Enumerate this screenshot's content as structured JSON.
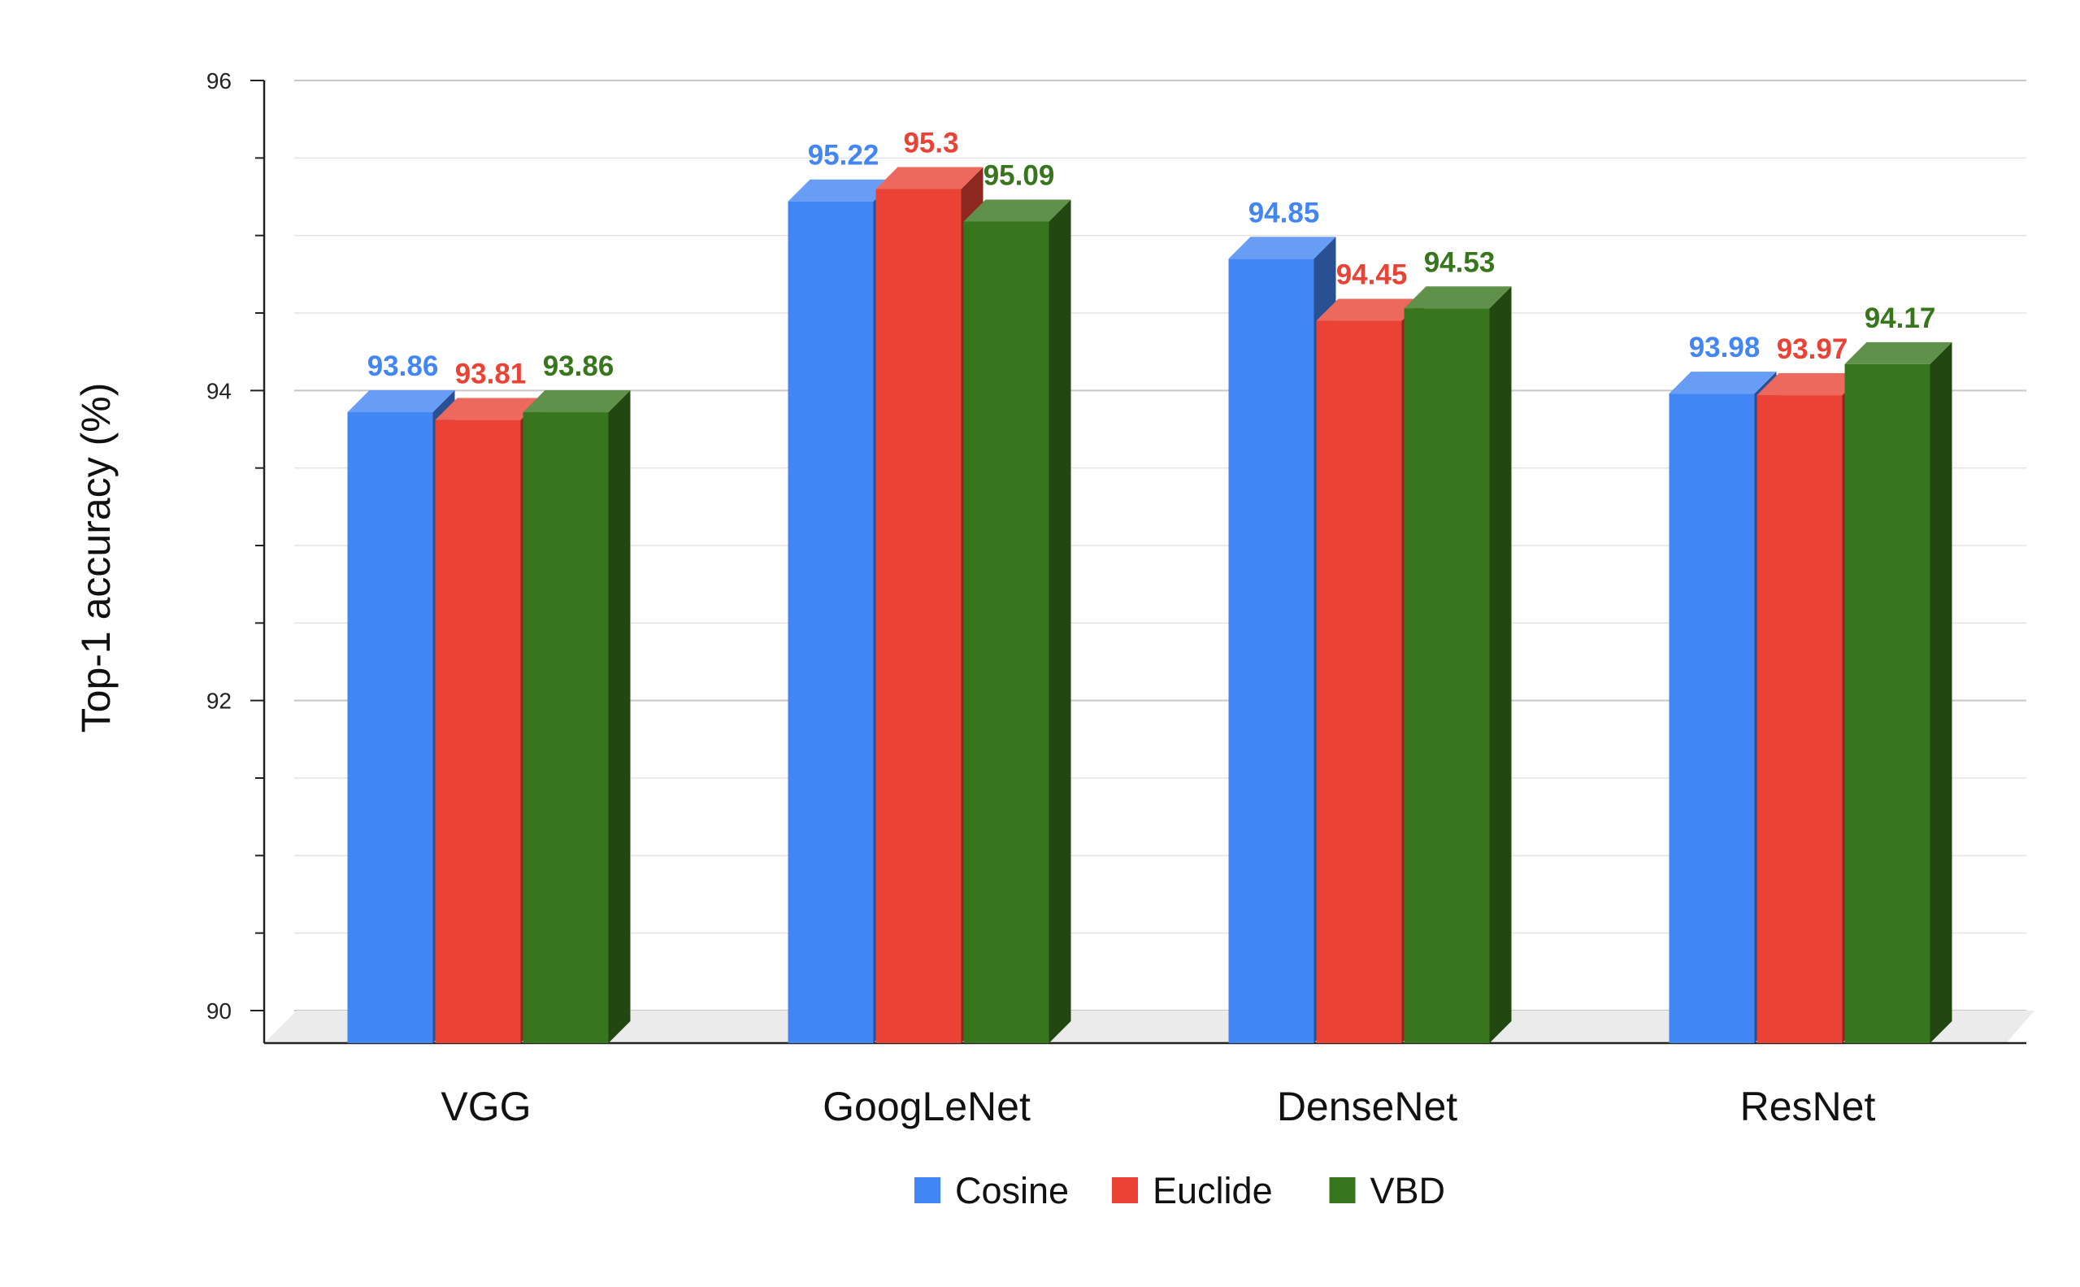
{
  "chart_data": {
    "type": "bar",
    "title": "",
    "xlabel": "",
    "ylabel": "Top-1 accuracy (%)",
    "ylim": [
      90,
      96
    ],
    "yticks": [
      90,
      92,
      94,
      96
    ],
    "grid": true,
    "legend_position": "bottom",
    "categories": [
      "VGG",
      "GoogLeNet",
      "DenseNet",
      "ResNet"
    ],
    "series": [
      {
        "name": "Cosine",
        "color": "#4285F4",
        "values": [
          93.86,
          95.22,
          94.85,
          93.98
        ],
        "labels": [
          "93.86",
          "95.22",
          "94.85",
          "93.98"
        ]
      },
      {
        "name": "Euclide",
        "color": "#EA4335",
        "values": [
          93.81,
          95.3,
          94.45,
          93.97
        ],
        "labels": [
          "93.81",
          "95.3",
          "94.45",
          "93.97"
        ]
      },
      {
        "name": "VBD",
        "color": "#38761D",
        "values": [
          93.86,
          95.09,
          94.53,
          94.17
        ],
        "labels": [
          "93.86",
          "95.09",
          "94.53",
          "94.17"
        ]
      }
    ]
  }
}
